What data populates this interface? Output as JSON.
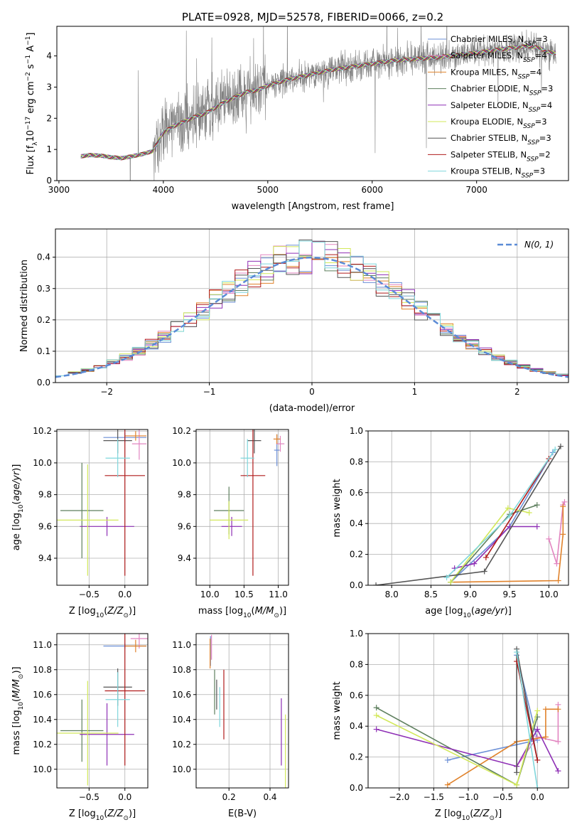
{
  "figure": {
    "title": "PLATE=0928, MJD=52578, FIBERID=0066, z=0.2"
  },
  "models": [
    {
      "label": "Chabrier MILES",
      "n": "3",
      "color": "#6b8fd6"
    },
    {
      "label": "Salpeter MILES",
      "n": "4",
      "color": "#e285c0"
    },
    {
      "label": "Kroupa MILES",
      "n": "4",
      "color": "#e0822b"
    },
    {
      "label": "Chabrier ELODIE",
      "n": "3",
      "color": "#5e7f5e"
    },
    {
      "label": "Salpeter ELODIE",
      "n": "4",
      "color": "#8e2fb5"
    },
    {
      "label": "Kroupa ELODIE",
      "n": "3",
      "color": "#d2e85a"
    },
    {
      "label": "Chabrier STELIB",
      "n": "3",
      "color": "#555555"
    },
    {
      "label": "Salpeter STELIB",
      "n": "2",
      "color": "#b01b1b"
    },
    {
      "label": "Kroupa STELIB",
      "n": "3",
      "color": "#7fd6db"
    }
  ],
  "chart_data": [
    {
      "id": "spectrum",
      "type": "line",
      "xlabel": "wavelength [Angstrom, rest frame]",
      "ylabel": "Flux [f",
      "xlim": [
        2980,
        7880
      ],
      "ylim": [
        0,
        4.95
      ],
      "xticks": [
        3000,
        4000,
        5000,
        6000,
        7000
      ],
      "yticks": [
        0,
        1,
        2,
        3,
        4
      ],
      "grid": false,
      "legend": "top-right",
      "data_color": "#808080",
      "continuum": {
        "x": [
          3210,
          3300,
          3400,
          3500,
          3600,
          3700,
          3800,
          3900,
          3950,
          4000,
          4100,
          4200,
          4300,
          4400,
          4500,
          4600,
          4700,
          4800,
          4900,
          5000,
          5200,
          5400,
          5600,
          5800,
          6000,
          6200,
          6400,
          6600,
          6800,
          7000,
          7200,
          7400,
          7500,
          7600,
          7700
        ],
        "y": [
          0.78,
          0.82,
          0.8,
          0.75,
          0.72,
          0.78,
          0.85,
          0.95,
          1.25,
          1.55,
          1.75,
          1.9,
          2.05,
          2.15,
          2.35,
          2.55,
          2.7,
          2.85,
          2.9,
          3.05,
          3.25,
          3.4,
          3.55,
          3.65,
          3.75,
          3.85,
          3.9,
          3.95,
          4.02,
          4.1,
          4.2,
          4.28,
          4.32,
          4.25,
          4.1
        ]
      }
    },
    {
      "id": "residuals",
      "type": "line",
      "xlabel": "(data-model)/error",
      "ylabel": "Normed distribution",
      "xlim": [
        -2.5,
        2.5
      ],
      "ylim": [
        0,
        0.49
      ],
      "xticks": [
        -2,
        -1,
        0,
        1,
        2
      ],
      "yticks": [
        0.0,
        0.1,
        0.2,
        0.3,
        0.4
      ],
      "grid": true,
      "legend": "top-right",
      "legend_label": "N(0, 1)",
      "normal_color": "#5b8bd6"
    },
    {
      "id": "age_vs_Z",
      "type": "scatter",
      "xlabel": "Z [log",
      "ylabel": "age  [log",
      "xlim": [
        -0.95,
        0.32
      ],
      "ylim": [
        9.23,
        10.21
      ],
      "xticks": [
        -0.5,
        0.0
      ],
      "yticks": [
        9.4,
        9.6,
        9.8,
        10.0,
        10.2
      ],
      "grid": true,
      "points": [
        {
          "x": 0.0,
          "y": 10.16,
          "xerr": 0.3,
          "yerr": 0.03
        },
        {
          "x": 0.2,
          "y": 10.12,
          "xerr": 0.1,
          "yerr": 0.1
        },
        {
          "x": 0.15,
          "y": 10.17,
          "xerr": 0.15,
          "yerr": 0.03
        },
        {
          "x": -0.6,
          "y": 9.7,
          "xerr": 0.3,
          "yerr": 0.3
        },
        {
          "x": -0.25,
          "y": 9.6,
          "xerr": 0.38,
          "yerr": 0.06
        },
        {
          "x": -0.52,
          "y": 9.64,
          "xerr": 0.43,
          "yerr": 0.35
        },
        {
          "x": -0.1,
          "y": 10.14,
          "xerr": 0.2,
          "yerr": 0.08
        },
        {
          "x": 0.0,
          "y": 9.92,
          "xerr": 0.28,
          "yerr": 0.63
        },
        {
          "x": -0.1,
          "y": 10.03,
          "xerr": 0.17,
          "yerr": 0.12
        }
      ]
    },
    {
      "id": "age_vs_mass",
      "type": "scatter",
      "xlabel": "mass [log",
      "ylabel": "",
      "xlim": [
        9.8,
        11.15
      ],
      "ylim": [
        9.23,
        10.21
      ],
      "xticks": [
        10.0,
        10.5,
        11.0
      ],
      "yticks": [
        9.4,
        9.6,
        9.8,
        10.0,
        10.2
      ],
      "grid": true,
      "points": [
        {
          "x": 10.98,
          "y": 10.08,
          "xerr": 0.04,
          "yerr": 0.1
        },
        {
          "x": 11.03,
          "y": 10.12,
          "xerr": 0.06,
          "yerr": 0.05
        },
        {
          "x": 10.98,
          "y": 10.15,
          "xerr": 0.05,
          "yerr": 0.03
        },
        {
          "x": 10.28,
          "y": 9.7,
          "xerr": 0.22,
          "yerr": 0.15
        },
        {
          "x": 10.32,
          "y": 9.6,
          "xerr": 0.15,
          "yerr": 0.06
        },
        {
          "x": 10.28,
          "y": 9.64,
          "xerr": 0.28,
          "yerr": 0.12
        },
        {
          "x": 10.65,
          "y": 10.14,
          "xerr": 0.1,
          "yerr": 0.08
        },
        {
          "x": 10.63,
          "y": 9.92,
          "xerr": 0.18,
          "yerr": 0.63
        },
        {
          "x": 10.55,
          "y": 10.03,
          "xerr": 0.1,
          "yerr": 0.12
        }
      ]
    },
    {
      "id": "massweight_vs_age",
      "type": "line",
      "xlabel": "age  [log",
      "ylabel": "mass weight",
      "xlim": [
        7.7,
        10.25
      ],
      "ylim": [
        0,
        1.0
      ],
      "xticks": [
        8.0,
        8.5,
        9.0,
        9.5,
        10.0
      ],
      "yticks": [
        0.0,
        0.2,
        0.4,
        0.6,
        0.8,
        1.0
      ],
      "grid": true,
      "series": [
        {
          "x": [
            8.75,
            9.5,
            10.05
          ],
          "y": [
            0.02,
            0.38,
            0.86
          ]
        },
        {
          "x": [
            10.0,
            10.1,
            10.18,
            10.2
          ],
          "y": [
            0.3,
            0.14,
            0.52,
            0.54
          ]
        },
        {
          "x": [
            8.75,
            10.12,
            10.18,
            10.18
          ],
          "y": [
            0.02,
            0.03,
            0.33,
            0.51
          ]
        },
        {
          "x": [
            8.75,
            9.5,
            9.85
          ],
          "y": [
            0.02,
            0.46,
            0.52
          ]
        },
        {
          "x": [
            8.8,
            9.05,
            9.5,
            9.85
          ],
          "y": [
            0.11,
            0.14,
            0.38,
            0.38
          ]
        },
        {
          "x": [
            8.75,
            9.48,
            9.75
          ],
          "y": [
            0.02,
            0.5,
            0.47
          ]
        },
        {
          "x": [
            7.8,
            9.18,
            10.15
          ],
          "y": [
            0.0,
            0.09,
            0.9
          ]
        },
        {
          "x": [
            9.2,
            10.0
          ],
          "y": [
            0.18,
            0.82
          ]
        },
        {
          "x": [
            8.7,
            9.5,
            10.08
          ],
          "y": [
            0.05,
            0.45,
            0.88
          ]
        }
      ]
    },
    {
      "id": "mass_vs_Z",
      "type": "scatter",
      "xlabel": "Z [log",
      "ylabel": "mass [log",
      "xlim": [
        -0.95,
        0.32
      ],
      "ylim": [
        9.85,
        11.09
      ],
      "xticks": [
        -0.5,
        0.0
      ],
      "yticks": [
        10.0,
        10.2,
        10.4,
        10.6,
        10.8,
        11.0
      ],
      "grid": true,
      "points": [
        {
          "x": 0.0,
          "y": 10.99,
          "xerr": 0.3,
          "yerr": 0.02
        },
        {
          "x": 0.2,
          "y": 11.05,
          "xerr": 0.12,
          "yerr": 0.08
        },
        {
          "x": 0.15,
          "y": 10.99,
          "xerr": 0.15,
          "yerr": 0.05
        },
        {
          "x": -0.6,
          "y": 10.31,
          "xerr": 0.3,
          "yerr": 0.25
        },
        {
          "x": -0.25,
          "y": 10.28,
          "xerr": 0.38,
          "yerr": 0.25
        },
        {
          "x": -0.52,
          "y": 10.29,
          "xerr": 0.43,
          "yerr": 0.42
        },
        {
          "x": -0.1,
          "y": 10.66,
          "xerr": 0.2,
          "yerr": 0.15
        },
        {
          "x": 0.0,
          "y": 10.63,
          "xerr": 0.28,
          "yerr": 0.6
        },
        {
          "x": -0.1,
          "y": 10.56,
          "xerr": 0.17,
          "yerr": 0.22
        }
      ]
    },
    {
      "id": "mass_vs_EBV",
      "type": "scatter",
      "xlabel": "E(B-V)",
      "ylabel": "",
      "xlim": [
        0.04,
        0.49
      ],
      "ylim": [
        9.85,
        11.09
      ],
      "xticks": [
        0.2,
        0.4
      ],
      "yticks": [
        10.0,
        10.2,
        10.4,
        10.6,
        10.8,
        11.0
      ],
      "grid": true,
      "points": [
        {
          "x": 0.11,
          "y": 10.95,
          "yerr": 0.12
        },
        {
          "x": 0.115,
          "y": 10.98,
          "yerr": 0.1
        },
        {
          "x": 0.108,
          "y": 10.93,
          "yerr": 0.12
        },
        {
          "x": 0.13,
          "y": 10.62,
          "yerr": 0.18
        },
        {
          "x": 0.455,
          "y": 10.3,
          "yerr": 0.27
        },
        {
          "x": 0.475,
          "y": 10.14,
          "yerr": 0.3
        },
        {
          "x": 0.14,
          "y": 10.6,
          "yerr": 0.12
        },
        {
          "x": 0.175,
          "y": 10.52,
          "yerr": 0.28
        },
        {
          "x": 0.155,
          "y": 10.5,
          "yerr": 0.16
        }
      ]
    },
    {
      "id": "massweight_vs_Z",
      "type": "line",
      "xlabel": "Z [log",
      "ylabel": "mass weight",
      "xlim": [
        -2.45,
        0.45
      ],
      "ylim": [
        0,
        1.0
      ],
      "xticks": [
        -2.0,
        -1.5,
        -1.0,
        -0.5,
        0.0
      ],
      "yticks": [
        0.0,
        0.2,
        0.4,
        0.6,
        0.8,
        1.0
      ],
      "grid": true,
      "series": [
        {
          "x": [
            -1.3,
            0.0,
            -0.3
          ],
          "y": [
            0.18,
            0.31,
            0.86
          ]
        },
        {
          "x": [
            0.3,
            0.3,
            -0.0,
            -0.3
          ],
          "y": [
            0.54,
            0.3,
            0.33,
            0.14
          ]
        },
        {
          "x": [
            -1.3,
            -0.3,
            0.12,
            0.12,
            0.3
          ],
          "y": [
            0.02,
            0.3,
            0.33,
            0.51,
            0.51
          ]
        },
        {
          "x": [
            -2.33,
            -0.3,
            0.0
          ],
          "y": [
            0.52,
            0.02,
            0.46
          ]
        },
        {
          "x": [
            -2.33,
            -0.3,
            0.0,
            0.3
          ],
          "y": [
            0.38,
            0.14,
            0.38,
            0.11
          ]
        },
        {
          "x": [
            -2.33,
            -0.3,
            0.0
          ],
          "y": [
            0.47,
            0.02,
            0.5
          ]
        },
        {
          "x": [
            -0.3,
            -0.3,
            0.0
          ],
          "y": [
            0.1,
            0.9,
            0.18
          ]
        },
        {
          "x": [
            -0.3,
            0.0
          ],
          "y": [
            0.82,
            0.18
          ]
        },
        {
          "x": [
            -0.3,
            0.0
          ],
          "y": [
            0.88,
            0.0
          ]
        }
      ]
    }
  ]
}
